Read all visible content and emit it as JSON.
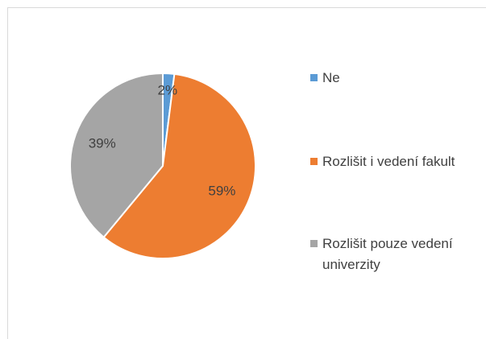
{
  "chart_data": {
    "type": "pie",
    "categories": [
      "Ne",
      "Rozlišit i vedení fakult",
      "Rozlišit pouze vedení univerzity"
    ],
    "values": [
      2,
      59,
      39
    ],
    "value_labels": [
      "2%",
      "59%",
      "39%"
    ],
    "colors": [
      "#5b9bd5",
      "#ed7d31",
      "#a5a5a5"
    ],
    "legend": "right"
  }
}
